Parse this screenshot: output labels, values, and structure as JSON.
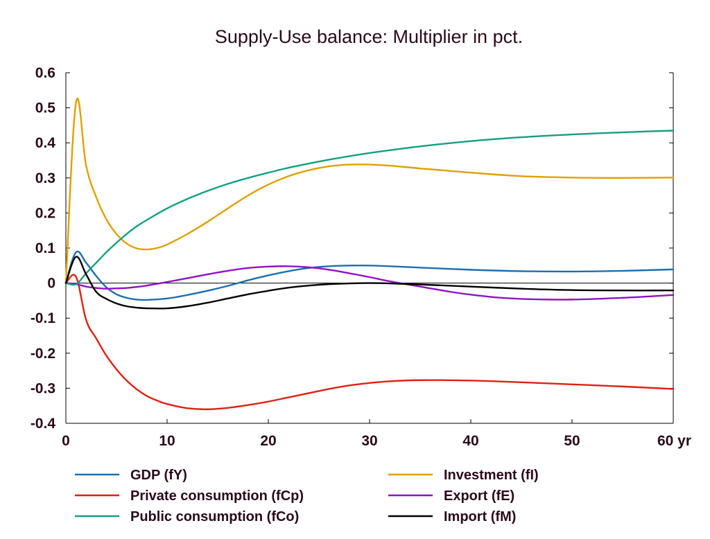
{
  "chart_data": {
    "type": "line",
    "title": "Supply-Use balance: Multiplier in pct.",
    "xlabel": "",
    "ylabel": "",
    "xlim": [
      0,
      60
    ],
    "ylim": [
      -0.4,
      0.6
    ],
    "x_ticks": [
      0,
      10,
      20,
      30,
      40,
      50,
      60
    ],
    "x_tick_labels": [
      "0",
      "10",
      "20",
      "30",
      "40",
      "50",
      "60 yr"
    ],
    "y_ticks": [
      0.6,
      0.5,
      0.4,
      0.3,
      0.2,
      0.1,
      0,
      -0.1,
      -0.2,
      -0.3,
      -0.4
    ],
    "y_tick_labels": [
      "0.6",
      "0.5",
      "0.4",
      "0.3",
      "0.2",
      "0.1",
      "0",
      "-0.1",
      "-0.2",
      "-0.3",
      "-0.4"
    ],
    "grid": false,
    "zero_line": true,
    "legend_position": "bottom",
    "series": [
      {
        "name": "GDP (fY)",
        "color": "#1a6fb0",
        "x": [
          0,
          1,
          2,
          3,
          4,
          5,
          6,
          7,
          8,
          10,
          12,
          14,
          16,
          18,
          20,
          22,
          24,
          26,
          28,
          30,
          32,
          35,
          40,
          45,
          50,
          55,
          60
        ],
        "y": [
          0,
          0.088,
          0.058,
          0.02,
          -0.012,
          -0.032,
          -0.042,
          -0.047,
          -0.048,
          -0.044,
          -0.034,
          -0.022,
          -0.008,
          0.008,
          0.022,
          0.034,
          0.043,
          0.048,
          0.05,
          0.05,
          0.048,
          0.044,
          0.038,
          0.034,
          0.033,
          0.035,
          0.039
        ]
      },
      {
        "name": "Investment (fI)",
        "color": "#e0a000",
        "x": [
          0,
          1,
          2,
          3,
          4,
          5,
          6,
          7,
          8,
          9,
          10,
          12,
          14,
          16,
          18,
          20,
          22,
          24,
          26,
          28,
          30,
          32,
          35,
          40,
          45,
          50,
          55,
          60
        ],
        "y": [
          0,
          0.515,
          0.335,
          0.245,
          0.182,
          0.14,
          0.113,
          0.099,
          0.096,
          0.1,
          0.11,
          0.14,
          0.175,
          0.213,
          0.25,
          0.281,
          0.305,
          0.322,
          0.333,
          0.338,
          0.338,
          0.335,
          0.327,
          0.315,
          0.305,
          0.301,
          0.3,
          0.301
        ]
      },
      {
        "name": "Private consumption (fCp)",
        "color": "#e02010",
        "x": [
          0,
          1,
          2,
          3,
          4,
          5,
          6,
          7,
          8,
          9,
          10,
          12,
          14,
          16,
          18,
          20,
          22,
          24,
          26,
          28,
          30,
          32,
          35,
          40,
          45,
          50,
          55,
          60
        ],
        "y": [
          0,
          0.018,
          -0.105,
          -0.158,
          -0.207,
          -0.246,
          -0.278,
          -0.303,
          -0.322,
          -0.335,
          -0.345,
          -0.357,
          -0.36,
          -0.356,
          -0.348,
          -0.338,
          -0.326,
          -0.314,
          -0.302,
          -0.292,
          -0.285,
          -0.28,
          -0.277,
          -0.278,
          -0.283,
          -0.289,
          -0.295,
          -0.302
        ]
      },
      {
        "name": "Export (fE)",
        "color": "#9010c8",
        "x": [
          0,
          1,
          2,
          3,
          4,
          5,
          6,
          7,
          8,
          10,
          12,
          14,
          16,
          18,
          20,
          22,
          24,
          26,
          28,
          30,
          32,
          35,
          38,
          40,
          43,
          46,
          50,
          55,
          60
        ],
        "y": [
          0,
          -0.003,
          -0.01,
          -0.014,
          -0.016,
          -0.015,
          -0.014,
          -0.011,
          -0.007,
          0.003,
          0.014,
          0.025,
          0.035,
          0.043,
          0.047,
          0.048,
          0.045,
          0.038,
          0.028,
          0.017,
          0.005,
          -0.01,
          -0.025,
          -0.033,
          -0.042,
          -0.046,
          -0.047,
          -0.042,
          -0.034
        ]
      },
      {
        "name": "Public consumption (fCo)",
        "color": "#10a080",
        "x": [
          0,
          1,
          2,
          3,
          4,
          5,
          6,
          7,
          8,
          10,
          12,
          14,
          16,
          18,
          20,
          22,
          24,
          26,
          28,
          30,
          32,
          35,
          40,
          45,
          50,
          55,
          60
        ],
        "y": [
          0,
          -0.003,
          0.028,
          0.058,
          0.088,
          0.115,
          0.14,
          0.162,
          0.18,
          0.213,
          0.24,
          0.263,
          0.283,
          0.3,
          0.315,
          0.329,
          0.341,
          0.352,
          0.362,
          0.371,
          0.379,
          0.39,
          0.405,
          0.416,
          0.424,
          0.43,
          0.435
        ]
      },
      {
        "name": "Import (fM)",
        "color": "#000000",
        "x": [
          0,
          1,
          2,
          3,
          4,
          5,
          6,
          7,
          8,
          10,
          12,
          14,
          16,
          18,
          20,
          22,
          24,
          26,
          28,
          30,
          32,
          35,
          40,
          45,
          50,
          55,
          60
        ],
        "y": [
          0,
          0.075,
          0.025,
          -0.025,
          -0.045,
          -0.058,
          -0.066,
          -0.07,
          -0.072,
          -0.072,
          -0.066,
          -0.056,
          -0.044,
          -0.032,
          -0.022,
          -0.013,
          -0.007,
          -0.003,
          -0.001,
          0.0,
          -0.001,
          -0.004,
          -0.01,
          -0.016,
          -0.02,
          -0.021,
          -0.021
        ]
      }
    ]
  }
}
